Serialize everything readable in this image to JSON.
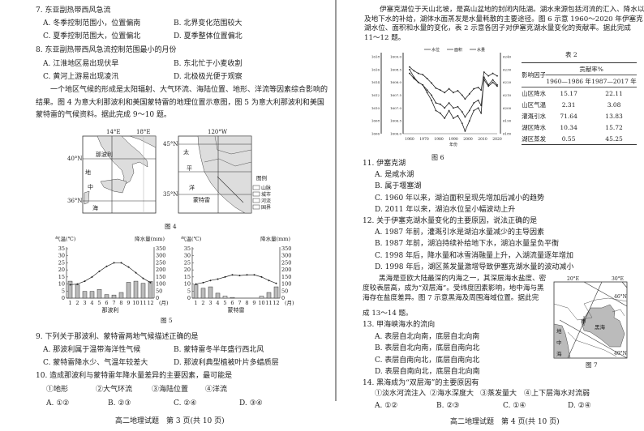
{
  "left": {
    "q7": {
      "stem": "7. 东亚副热带西风急流",
      "a": "A. 冬季控制范围小，位置偏南",
      "b": "B. 北界变化范围较大",
      "c": "C. 夏季控制范围大，位置偏北",
      "d": "D. 夏季整体位置偏北"
    },
    "q8": {
      "stem": "8. 东亚副热带西风急流控制范围最小的月份",
      "a": "A. 江淮地区易出现伏旱",
      "b": "B. 东北忙于小麦收割",
      "c": "C. 黄河上游易出现凌汛",
      "d": "D. 北极极光便于观察"
    },
    "intro": [
      "一个地区气候的形成是太阳辐射、大气环流、海陆位置、地形、洋流等因素综合影响的",
      "结果。图 4 为意大利那波利和美国蒙特雷的地理位置示意图，图 5 为意大利那波利和美国",
      "蒙特雷的气候资料。据此完成 9～10 题。"
    ],
    "fig4": {
      "caption": "图 4",
      "map1": {
        "lon1": "14°E",
        "lon2": "18°E",
        "lat1": "40°N",
        "lat2": "36°N",
        "city": "那波利",
        "sea": [
          "地",
          "中",
          "海"
        ]
      },
      "map2": {
        "lon": "120°W",
        "lat1": "45°N",
        "lat2": "35°N",
        "city": "蒙特雷",
        "ocean": [
          "太",
          "平",
          "洋"
        ]
      },
      "legend": {
        "title": "图例",
        "items": [
          "山脉",
          "城市",
          "河流",
          "国界"
        ]
      }
    },
    "fig5": {
      "caption": "图 5",
      "temp_label": "气温(℃)",
      "precip_label": "降水量(mm)",
      "temp_ticks": [
        "35",
        "30",
        "25",
        "20",
        "15",
        "10",
        "5",
        "0"
      ],
      "precip_ticks": [
        "350",
        "300",
        "250",
        "200",
        "150",
        "100",
        "50",
        "0"
      ],
      "months": [
        "1",
        "2",
        "3",
        "4",
        "5",
        "6",
        "7",
        "8",
        "9",
        "10",
        "11",
        "12"
      ],
      "month_unit": "(月)",
      "charts": [
        {
          "station": "那波利",
          "temperature": [
            9.5,
            10,
            12,
            15,
            19,
            22.5,
            25,
            25,
            22,
            18,
            14,
            11
          ],
          "precipitation": [
            120,
            95,
            48,
            48,
            62,
            25,
            22,
            40,
            112,
            120,
            105,
            118
          ]
        },
        {
          "station": "蒙特雷",
          "temperature": [
            10,
            11,
            12.5,
            13.5,
            15,
            16.5,
            16,
            16.5,
            16.5,
            15,
            12.5,
            10.5
          ],
          "precipitation": [
            95,
            70,
            80,
            35,
            15,
            5,
            0,
            0,
            0,
            15,
            40,
            80
          ]
        }
      ]
    },
    "q9": {
      "stem": "9. 下列关于那波利、蒙特雷两地气候描述正确的是",
      "a": "A. 那波利属于温带海洋性气候",
      "b": "B. 蒙特雷冬半年盛行西北风",
      "c": "C. 蒙特雷降水少、气温年较差大",
      "d": "D. 那波利典型植被叶片多蜡质层"
    },
    "q10": {
      "stem": "10. 造成那波利与蒙特雷年降水量差异的主要因素，最可能是",
      "items": [
        "①地形",
        "②大气环流",
        "③海陆位置",
        "④洋流"
      ],
      "a": "A. ①②",
      "b": "B. ②③",
      "c": "C. ②④",
      "d": "D. ③④"
    },
    "footer": "高二地理试题　第 3 页(共 10 页)"
  },
  "right": {
    "intro": [
      "伊塞克湖位于天山北坡，是高山盆地的封闭内陆湖。湖水来源包括河流的汇入、降水以",
      "及地下水的补给，湖体水面蒸发是水量耗散的主要途径。图 6 示意 1960～2020 年伊塞克",
      "湖水位、面积和水量的变化，表 2 示意各因子对伊塞克湖水量变化的贡献率。据此完成",
      "11～12 题。"
    ],
    "fig6": {
      "caption": "图 6",
      "legend": [
        "水位",
        "面积",
        "水量"
      ],
      "xlabel": "年份",
      "x_ticks": [
        "1960",
        "1970",
        "1980",
        "1990",
        "2000",
        "2010",
        "2020"
      ],
      "axis1_ticks": [
        "1618",
        "1616",
        "1614",
        "1612",
        "1610",
        "1608",
        "1606"
      ],
      "axis2_ticks": [
        "1609.0",
        "1608.5",
        "1608.0",
        "1607.5",
        "1607.0",
        "1606.5",
        "1606.0"
      ],
      "axis3_ticks": [
        "6240",
        "6230",
        "6220",
        "6210",
        "6200",
        "6190",
        "6180"
      ],
      "years": [
        1960,
        1963,
        1966,
        1969,
        1972,
        1975,
        1978,
        1981,
        1984,
        1987,
        1990,
        1993,
        1996,
        1998,
        2001,
        2004,
        2007,
        2009,
        2011,
        2014,
        2017,
        2020
      ],
      "series": [
        {
          "name": "水位",
          "values": [
            1608.5,
            1608.2,
            1608.0,
            1607.9,
            1607.6,
            1607.3,
            1606.9,
            1606.8,
            1606.6,
            1606.9,
            1606.6,
            1606.7,
            1606.4,
            1606.1,
            1606.5,
            1606.9,
            1607.0,
            1606.8,
            1608.2,
            1607.9,
            1608.1,
            1607.9
          ]
        },
        {
          "name": "面积",
          "values": [
            1616.4,
            1615.8,
            1615.4,
            1615.2,
            1614.6,
            1613.9,
            1613.1,
            1612.8,
            1612.4,
            1613.0,
            1612.4,
            1612.7,
            1612.0,
            1611.4,
            1612.2,
            1613.0,
            1613.2,
            1612.8,
            1615.6,
            1615.0,
            1615.4,
            1615.0
          ]
        },
        {
          "name": "水量",
          "values": [
            6227,
            6223,
            6220,
            6218,
            6214,
            6210,
            6204,
            6203,
            6200,
            6204,
            6200,
            6201,
            6197,
            6193,
            6198,
            6204,
            6206,
            6202,
            6222,
            6217,
            6220,
            6217
          ]
        }
      ]
    },
    "table2": {
      "title": "表 2",
      "col_factor": "影响因子",
      "col_group": "贡献率%",
      "col1": "1960—1986 年",
      "col2": "1987—2017 年",
      "rows": [
        {
          "factor": "山区降水",
          "v1": "15.17",
          "v2": "22.11"
        },
        {
          "factor": "山区气温",
          "v1": "2.31",
          "v2": "3.08"
        },
        {
          "factor": "灌溉引水",
          "v1": "71.64",
          "v2": "13.83"
        },
        {
          "factor": "湖区降水",
          "v1": "10.34",
          "v2": "15.72"
        },
        {
          "factor": "湖区蒸发",
          "v1": "0.55",
          "v2": "45.25"
        }
      ]
    },
    "q11": {
      "stem": "11. 伊塞克湖",
      "a": "A. 是咸水湖",
      "b": "B. 属于堰塞湖",
      "c": "C. 1960 年以来，湖泊面积呈现先增加后减小的趋势",
      "d": "D. 2011 年以来，湖泊水位呈小幅波动上升"
    },
    "q12": {
      "stem": "12. 关于伊塞克湖水量变化的主要原因，说法正确的是",
      "a": "A. 1987 年前，灌溉引水是湖泊水量减少的主导因素",
      "b": "B. 1987 年前，湖泊持续补给地下水，湖泊水量呈负平衡",
      "c": "C. 1998 年后，降水量和冰雪消融量上升，入湖流量逐年增加",
      "d": "D. 1998 年后，湖区蒸发量激增导致伊塞克湖水量的波动减小"
    },
    "intro2": [
      "黑海是亚欧大陆最深的内海之一，其深层海水盐度、密",
      "度较表层高，成为“双层海”。受纬度因素影响，地中海与黑",
      "海存在盐度差异。图 7 示意黑海及周围海域位置。据此完",
      "成 13～14 题。"
    ],
    "fig7": {
      "caption": "图 7",
      "lon1": "20°E",
      "lon2": "30°E",
      "lat1": "46°N",
      "lat2": "40°N",
      "strait": "甲",
      "black_sea": "黑海",
      "med": [
        "地",
        "中",
        "海"
      ]
    },
    "q13": {
      "stem": "13. 甲海峡海水的流向",
      "a": "A. 表层自北向南，底层自北向南",
      "b": "B. 表层自北向南，底层自南向北",
      "c": "C. 表层自南向北，底层自南向北",
      "d": "D. 表层自南向北，底层自北向南"
    },
    "q14": {
      "stem": "14. 黑海成为“双层海”的主要原因有",
      "items": [
        "①淡水河流注入",
        "②海水深度大",
        "③蒸发量大",
        "④上下层海水对流弱"
      ],
      "a": "A. ①②",
      "b": "B. ②③",
      "c": "C. ①④",
      "d": "D. ②④"
    },
    "footer": "高二地理试题　第 4 页(共 10 页)"
  }
}
